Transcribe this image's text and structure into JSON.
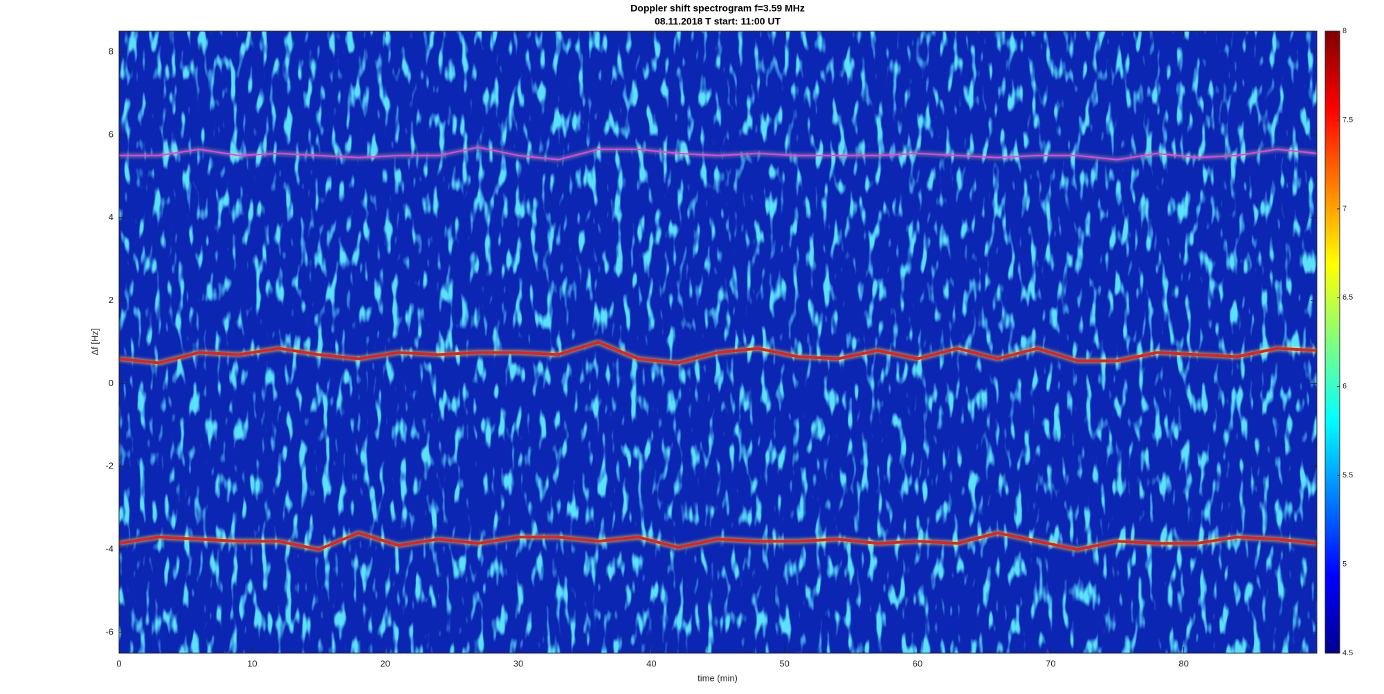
{
  "chart_data": {
    "type": "spectrogram",
    "title": "Doppler shift spectrogram f=3.59 MHz",
    "subtitle": "08.11.2018   T start: 11:00 UT",
    "x_label": "time (min)",
    "y_label": "Δf [Hz]",
    "xlim": [
      0,
      90
    ],
    "xticks": [
      0,
      10,
      20,
      30,
      40,
      50,
      60,
      70,
      80
    ],
    "ylim": [
      -6.5,
      8.5
    ],
    "yticks": [
      -6,
      -4,
      -2,
      0,
      2,
      4,
      6,
      8
    ],
    "colormap": "jet",
    "clim": [
      4.5,
      8
    ],
    "cticks": [
      4.5,
      5,
      5.5,
      6,
      6.5,
      7,
      7.5,
      8
    ],
    "x": [
      0,
      3,
      6,
      9,
      12,
      15,
      18,
      21,
      24,
      27,
      30,
      33,
      36,
      39,
      42,
      45,
      48,
      51,
      54,
      57,
      60,
      63,
      66,
      69,
      72,
      75,
      78,
      81,
      84,
      87,
      90
    ],
    "series": [
      {
        "color": "#ff33ff",
        "values": [
          5.5,
          5.5,
          5.65,
          5.5,
          5.55,
          5.5,
          5.45,
          5.5,
          5.5,
          5.7,
          5.5,
          5.4,
          5.65,
          5.65,
          5.55,
          5.5,
          5.55,
          5.5,
          5.5,
          5.5,
          5.55,
          5.5,
          5.45,
          5.5,
          5.5,
          5.4,
          5.55,
          5.45,
          5.5,
          5.65,
          5.55
        ]
      },
      {
        "color": "#e8201a",
        "values": [
          0.6,
          0.5,
          0.75,
          0.7,
          0.85,
          0.7,
          0.6,
          0.75,
          0.7,
          0.75,
          0.75,
          0.7,
          1.0,
          0.6,
          0.5,
          0.75,
          0.85,
          0.65,
          0.6,
          0.8,
          0.6,
          0.85,
          0.6,
          0.85,
          0.55,
          0.55,
          0.75,
          0.7,
          0.65,
          0.85,
          0.8
        ]
      },
      {
        "color": "#e8201a",
        "values": [
          -3.85,
          -3.7,
          -3.75,
          -3.8,
          -3.8,
          -4.0,
          -3.6,
          -3.9,
          -3.75,
          -3.85,
          -3.7,
          -3.7,
          -3.8,
          -3.7,
          -3.95,
          -3.75,
          -3.8,
          -3.8,
          -3.75,
          -3.85,
          -3.8,
          -3.85,
          -3.6,
          -3.8,
          -4.0,
          -3.8,
          -3.85,
          -3.85,
          -3.7,
          -3.75,
          -3.85
        ]
      }
    ]
  }
}
